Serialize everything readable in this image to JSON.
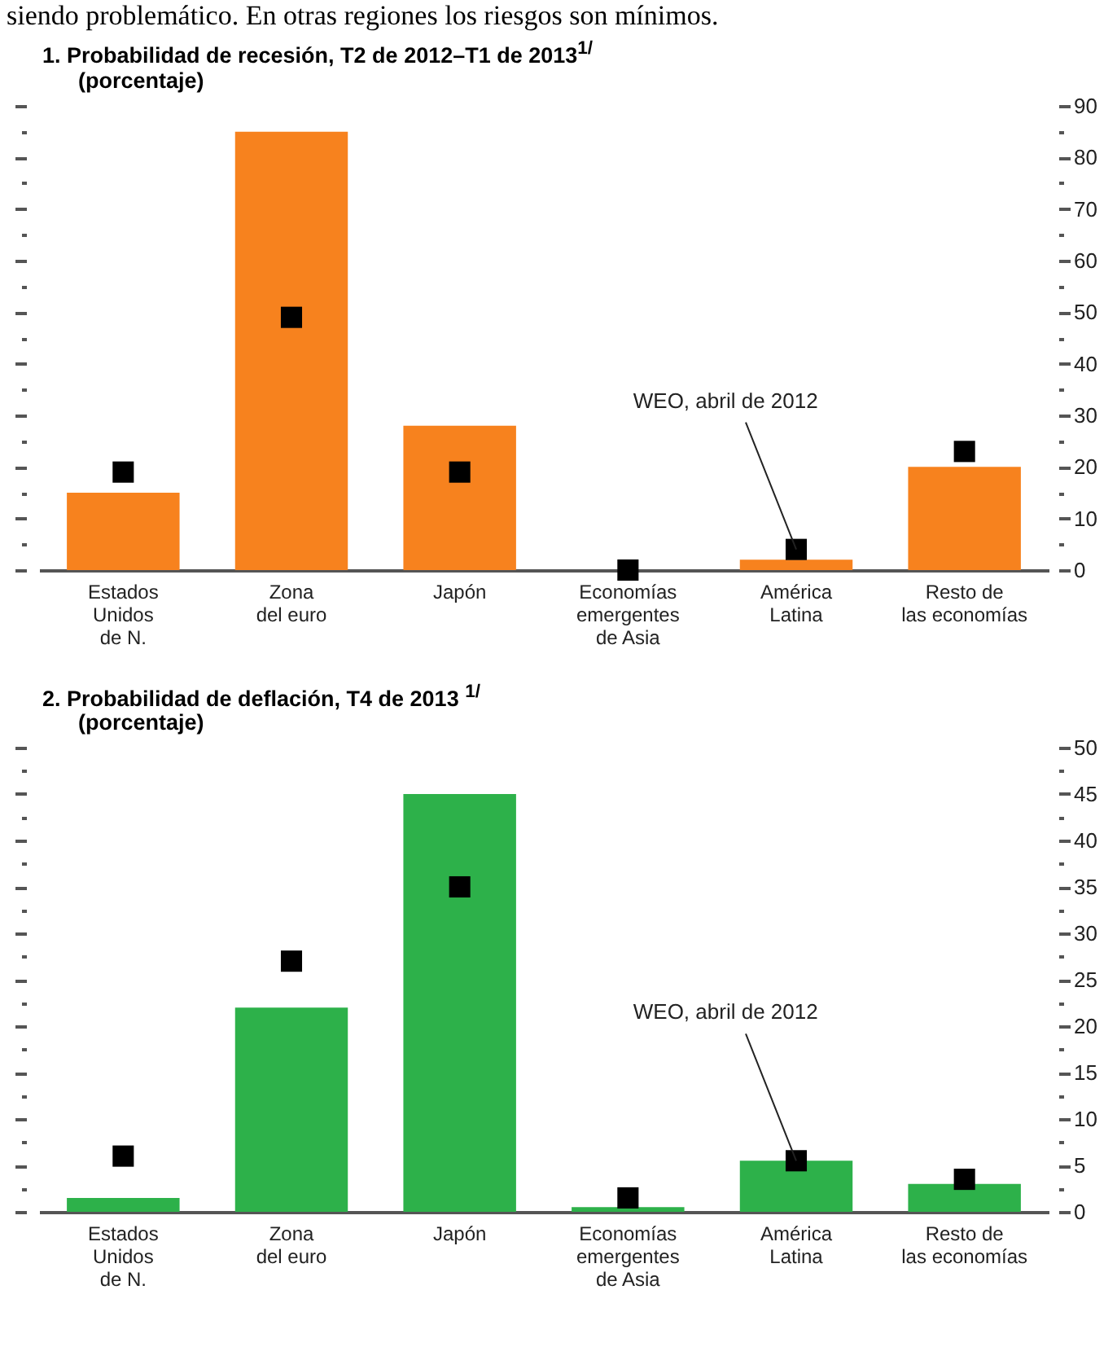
{
  "chart_data": [
    {
      "type": "bar",
      "title": "1. Probabilidad de recesión, T2 de 2012–T1 de 2013$^{1/}$",
      "subtitle": "(porcentaje)",
      "annotations": [
        "siendo problemático. En otras regiones los riesgos son mínimos.",
        {
          "text": "WEO, abril de 2012",
          "x": "América\nLatina",
          "y": 4
        }
      ],
      "categories": [
        "Estados\nUnidos\nde N.",
        "Zona\ndel euro",
        "Japón",
        "Economías\nemergentes\nde Asia",
        "América\nLatina",
        "Resto de\nlas economías"
      ],
      "series": [
        {
          "color": "#f7821e",
          "values": [
            15,
            85,
            28,
            0,
            2,
            20
          ]
        },
        {
          "type": "scatter",
          "color": "#000000",
          "values": [
            19,
            49,
            19,
            0,
            4,
            23
          ]
        }
      ],
      "ylim": [
        0,
        90
      ],
      "yticks": [
        0,
        {
          "value": 5,
          "label": null
        },
        10,
        {
          "value": 15,
          "label": null
        },
        20,
        {
          "value": 25,
          "label": null
        },
        30,
        {
          "value": 35,
          "label": null
        },
        40,
        {
          "value": 45,
          "label": null
        },
        50,
        {
          "value": 55,
          "label": null
        },
        60,
        {
          "value": 65,
          "label": null
        },
        70,
        {
          "value": 75,
          "label": null
        },
        80,
        {
          "value": 85,
          "label": null
        },
        90
      ],
      "grid": false,
      "marker": "square"
    },
    {
      "type": "bar",
      "title": "2. Probabilidad de deflación, T4 de 2013 $^{1/}$",
      "subtitle": "(porcentaje)",
      "annotations": [
        {
          "text": "WEO, abril de 2012",
          "x": "América\nLatina",
          "y": 5.5
        }
      ],
      "categories": [
        "Estados\nUnidos\nde N.",
        "Zona\ndel euro",
        "Japón",
        "Economías\nemergentes\nde Asia",
        "América\nLatina",
        "Resto de\nlas economías"
      ],
      "series": [
        {
          "color": "#2db14a",
          "values": [
            1.5,
            22,
            45,
            0.5,
            5.5,
            3
          ]
        },
        {
          "type": "scatter",
          "color": "#000000",
          "values": [
            6,
            27,
            35,
            1.5,
            5.5,
            3.5
          ]
        }
      ],
      "ylim": [
        0,
        50
      ],
      "yticks": [
        0,
        {
          "value": 2.5,
          "label": null
        },
        5,
        {
          "value": 7.5,
          "label": null
        },
        10,
        {
          "value": 12.5,
          "label": null
        },
        15,
        {
          "value": 17.5,
          "label": null
        },
        20,
        {
          "value": 22.5,
          "label": null
        },
        25,
        {
          "value": 27.5,
          "label": null
        },
        30,
        {
          "value": 32.5,
          "label": null
        },
        35,
        {
          "value": 37.5,
          "label": null
        },
        40,
        {
          "value": 42.5,
          "label": null
        },
        45,
        {
          "value": 47.5,
          "label": null
        },
        50
      ],
      "grid": false,
      "marker": "square"
    }
  ]
}
